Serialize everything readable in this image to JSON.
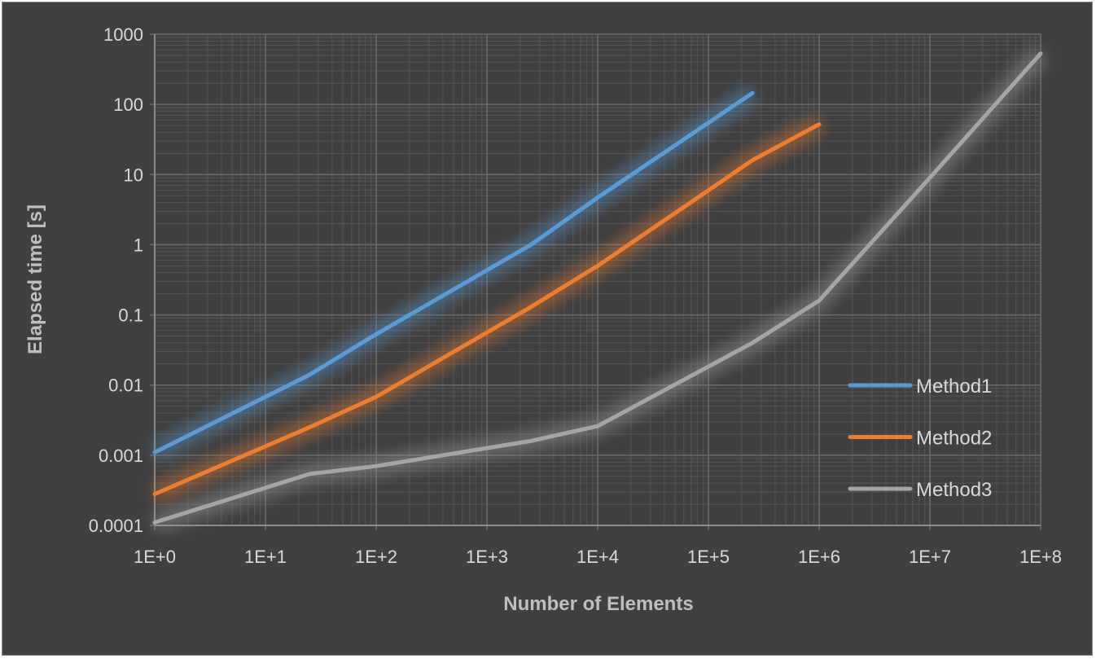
{
  "chart_data": {
    "type": "line",
    "title": "",
    "xlabel": "Number of Elements",
    "ylabel": "Elapsed time [s]",
    "xscale": "log",
    "yscale": "log",
    "xlim": [
      1,
      100000000
    ],
    "ylim": [
      0.0001,
      1000
    ],
    "x_tick_labels": [
      "1E+0",
      "1E+1",
      "1E+2",
      "1E+3",
      "1E+4",
      "1E+5",
      "1E+6",
      "1E+7",
      "1E+8"
    ],
    "y_tick_labels": [
      "0.0001",
      "0.001",
      "0.01",
      "0.1",
      "1",
      "10",
      "100",
      "1000"
    ],
    "grid": true,
    "legend_position": "right",
    "series": [
      {
        "name": "Method1",
        "color": "#5b9bd5",
        "x": [
          1,
          25,
          100,
          2500,
          10000,
          250000
        ],
        "y": [
          0.0011,
          0.014,
          0.053,
          1.0,
          4.7,
          145
        ]
      },
      {
        "name": "Method2",
        "color": "#ed7d31",
        "x": [
          1,
          25,
          100,
          2500,
          10000,
          250000,
          1000000
        ],
        "y": [
          0.00028,
          0.0025,
          0.0068,
          0.13,
          0.5,
          16,
          52
        ]
      },
      {
        "name": "Method3",
        "color": "#a5a5a5",
        "x": [
          1,
          25,
          100,
          2500,
          10000,
          250000,
          1000000,
          10000000,
          100000000
        ],
        "y": [
          0.00011,
          0.00054,
          0.0007,
          0.0016,
          0.0026,
          0.04,
          0.16,
          9,
          530
        ]
      }
    ]
  }
}
